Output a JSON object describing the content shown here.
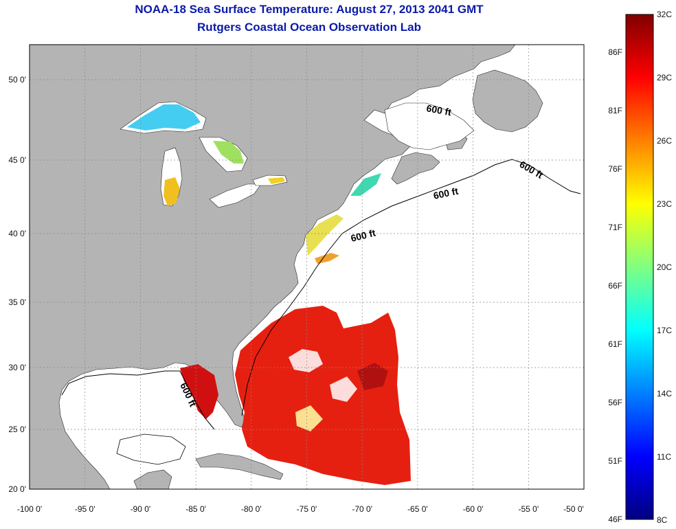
{
  "title": "NOAA-18 Sea Surface Temperature:  August 27, 2013 2041 GMT",
  "subtitle": "Rutgers Coastal Ocean Observation Lab",
  "map": {
    "lon_range": [
      -100,
      -50
    ],
    "lat_range": [
      20,
      52.5
    ],
    "lon_ticks": [
      "-100 0'",
      "-95 0'",
      "-90 0'",
      "-85 0'",
      "-80 0'",
      "-75 0'",
      "-70 0'",
      "-65 0'",
      "-60 0'",
      "-55 0'",
      "-50 0'"
    ],
    "lat_ticks": [
      "20 0'",
      "25 0'",
      "30 0'",
      "35 0'",
      "40 0'",
      "45 0'",
      "50 0'"
    ],
    "contour_labels": [
      "600 ft",
      "600 ft",
      "600 ft",
      "600 ft",
      "600 ft"
    ],
    "colors": {
      "land": "#b4b4b4",
      "no_data": "#ffffff",
      "grid": "#666666"
    }
  },
  "colorbar": {
    "celsius": [
      "32C",
      "29C",
      "26C",
      "23C",
      "20C",
      "17C",
      "14C",
      "11C",
      "8C"
    ],
    "fahrenheit": [
      "86F",
      "81F",
      "76F",
      "71F",
      "66F",
      "61F",
      "56F",
      "51F",
      "46F"
    ],
    "stops": [
      "#800000",
      "#ff0000",
      "#ff8000",
      "#ffff00",
      "#80ff80",
      "#00ffff",
      "#0080ff",
      "#0000ff",
      "#000080"
    ]
  }
}
